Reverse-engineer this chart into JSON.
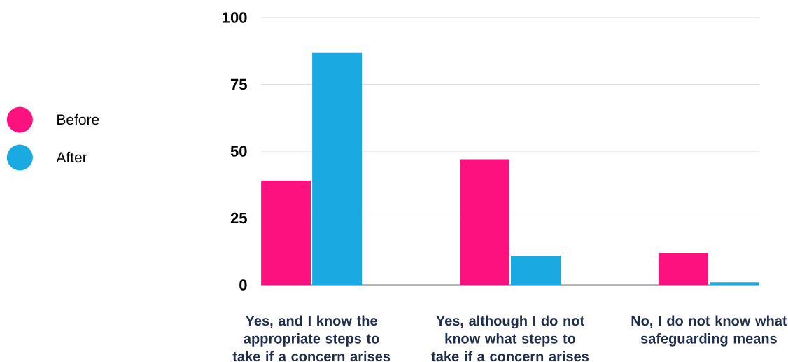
{
  "chart_data": {
    "type": "bar",
    "categories": [
      "Yes, and I know the appropriate steps to take if a concern arises",
      "Yes, although I do not know what steps to take if a concern arises",
      "No, I do not know what safeguarding means"
    ],
    "series": [
      {
        "name": "Before",
        "color": "#fc117f",
        "values": [
          39,
          47,
          12
        ]
      },
      {
        "name": "After",
        "color": "#1aa9e0",
        "values": [
          87,
          11,
          1
        ]
      }
    ],
    "ylim": [
      0,
      100
    ],
    "yticks": [
      0,
      25,
      50,
      75,
      100
    ],
    "grid": "y",
    "legend": "left"
  }
}
